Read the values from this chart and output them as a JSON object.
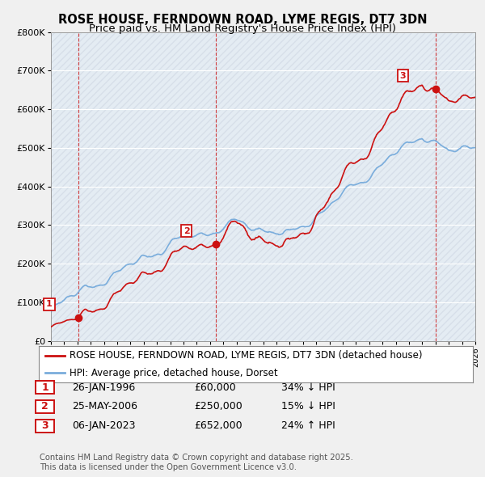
{
  "title": "ROSE HOUSE, FERNDOWN ROAD, LYME REGIS, DT7 3DN",
  "subtitle": "Price paid vs. HM Land Registry's House Price Index (HPI)",
  "xlim": [
    1994,
    2026
  ],
  "ylim": [
    0,
    800000
  ],
  "yticks": [
    0,
    100000,
    200000,
    300000,
    400000,
    500000,
    600000,
    700000,
    800000
  ],
  "ytick_labels": [
    "£0",
    "£100K",
    "£200K",
    "£300K",
    "£400K",
    "£500K",
    "£600K",
    "£700K",
    "£800K"
  ],
  "bg_color": "#f0f0f0",
  "plot_bg_color": "#dce6f0",
  "hpi_color": "#7aaddc",
  "price_color": "#cc1111",
  "sale1_x": 1996.07,
  "sale1_y": 60000,
  "sale1_label": "1",
  "sale2_x": 2006.42,
  "sale2_y": 250000,
  "sale2_label": "2",
  "sale3_x": 2023.03,
  "sale3_y": 652000,
  "sale3_label": "3",
  "legend_line1": "ROSE HOUSE, FERNDOWN ROAD, LYME REGIS, DT7 3DN (detached house)",
  "legend_line2": "HPI: Average price, detached house, Dorset",
  "table": [
    [
      "1",
      "26-JAN-1996",
      "£60,000",
      "34% ↓ HPI"
    ],
    [
      "2",
      "25-MAY-2006",
      "£250,000",
      "15% ↓ HPI"
    ],
    [
      "3",
      "06-JAN-2023",
      "£652,000",
      "24% ↑ HPI"
    ]
  ],
  "footer": "Contains HM Land Registry data © Crown copyright and database right 2025.\nThis data is licensed under the Open Government Licence v3.0.",
  "title_fontsize": 10.5,
  "subtitle_fontsize": 9.5,
  "tick_fontsize": 8,
  "legend_fontsize": 8.5
}
